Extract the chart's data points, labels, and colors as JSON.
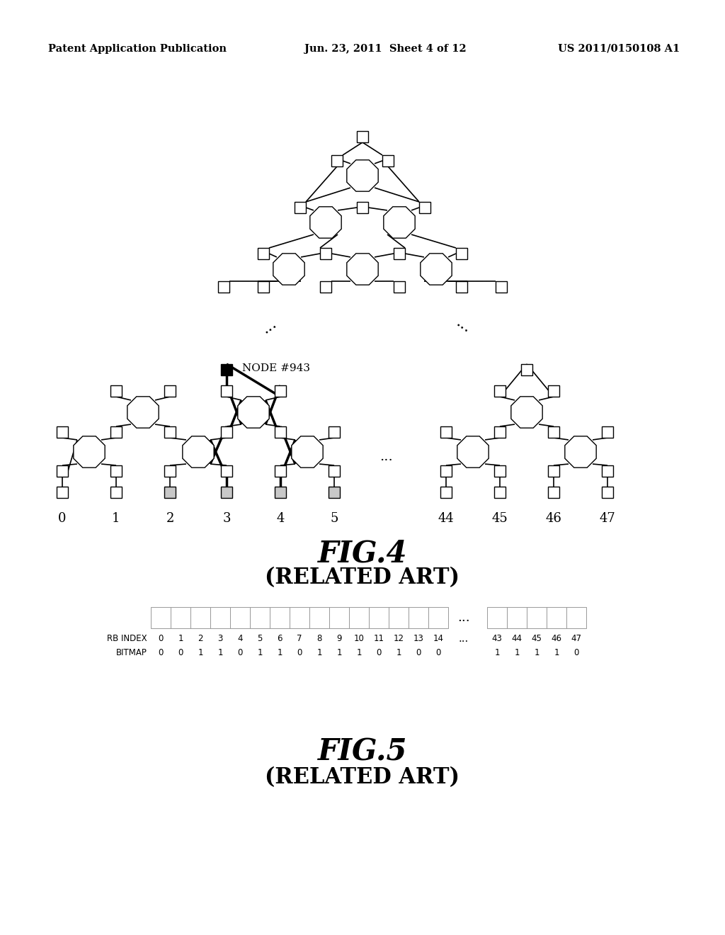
{
  "header_left": "Patent Application Publication",
  "header_mid": "Jun. 23, 2011  Sheet 4 of 12",
  "header_right": "US 2011/0150108 A1",
  "fig4_title": "FIG.4",
  "fig4_subtitle": "(RELATED ART)",
  "fig5_title": "FIG.5",
  "fig5_subtitle": "(RELATED ART)",
  "rb_index_label": "RB INDEX",
  "bitmap_label": "BITMAP",
  "rb_indices_main": [
    "0",
    "1",
    "2",
    "3",
    "4",
    "5",
    "6",
    "7",
    "8",
    "9",
    "10",
    "11",
    "12",
    "13",
    "14"
  ],
  "rb_indices_end": [
    "43",
    "44",
    "45",
    "46",
    "47"
  ],
  "bitmap_main": [
    "0",
    "0",
    "1",
    "1",
    "0",
    "1",
    "1",
    "0",
    "1",
    "1",
    "1",
    "0",
    "1",
    "0",
    "0"
  ],
  "bitmap_end": [
    "1",
    "1",
    "1",
    "1",
    "0"
  ],
  "node943_label": "NODE #943",
  "ellipsis": "...",
  "background_color": "#ffffff",
  "gray_fill": "#c8c8c8",
  "black_fill": "#000000",
  "sq_size": 16,
  "oct_r": 24
}
